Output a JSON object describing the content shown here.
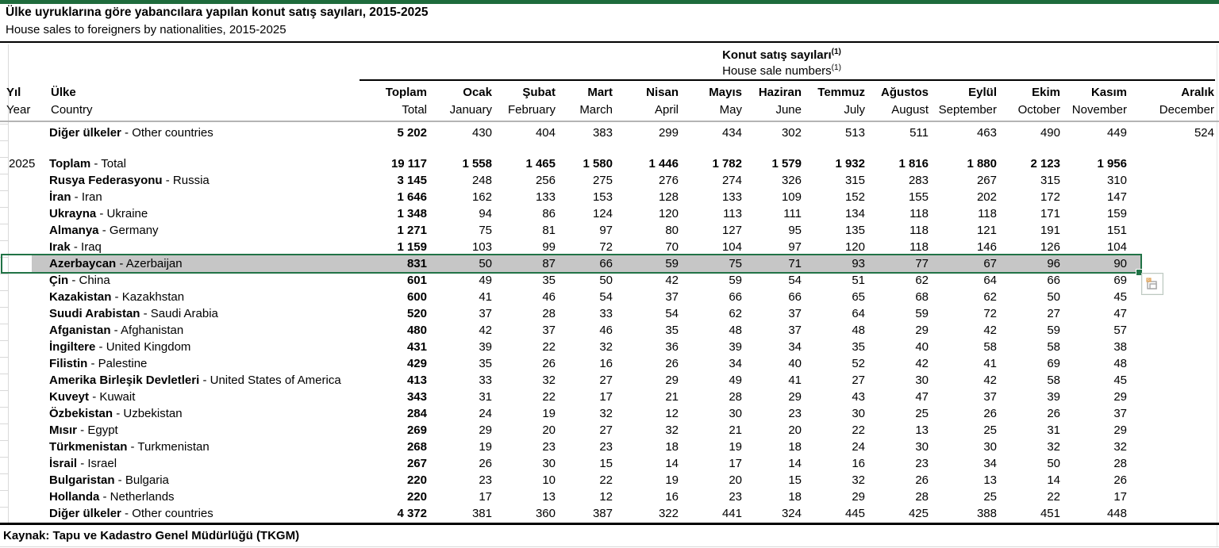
{
  "title": {
    "tr": "Ülke uyruklarına göre yabancılara yapılan konut satış sayıları, 2015-2025",
    "en": "House sales to foreigners by nationalities, 2015-2025"
  },
  "table": {
    "group_header": {
      "tr": "Konut satış sayıları",
      "en": "House sale numbers",
      "footnote": "(1)"
    },
    "columns": {
      "year": {
        "tr": "Yıl",
        "en": "Year"
      },
      "country": {
        "tr": "Ülke",
        "en": "Country"
      },
      "months": [
        {
          "tr": "Toplam",
          "en": "Total"
        },
        {
          "tr": "Ocak",
          "en": "January"
        },
        {
          "tr": "Şubat",
          "en": "February"
        },
        {
          "tr": "Mart",
          "en": "March"
        },
        {
          "tr": "Nisan",
          "en": "April"
        },
        {
          "tr": "Mayıs",
          "en": "May"
        },
        {
          "tr": "Haziran",
          "en": "June"
        },
        {
          "tr": "Temmuz",
          "en": "July"
        },
        {
          "tr": "Ağustos",
          "en": "August"
        },
        {
          "tr": "Eylül",
          "en": "September"
        },
        {
          "tr": "Ekim",
          "en": "October"
        },
        {
          "tr": "Kasım",
          "en": "November"
        },
        {
          "tr": "Aralık",
          "en": "December"
        }
      ]
    },
    "rows": [
      {
        "year": "",
        "tr": "Diğer ülkeler",
        "en": "Other countries",
        "gap_after": true,
        "values": [
          "5 202",
          "430",
          "404",
          "383",
          "299",
          "434",
          "302",
          "513",
          "511",
          "463",
          "490",
          "449",
          "524"
        ]
      },
      {
        "year": "2025",
        "tr": "Toplam",
        "en": "Total",
        "bold_row": true,
        "values": [
          "19 117",
          "1 558",
          "1 465",
          "1 580",
          "1 446",
          "1 782",
          "1 579",
          "1 932",
          "1 816",
          "1 880",
          "2 123",
          "1 956",
          ""
        ]
      },
      {
        "year": "",
        "tr": "Rusya Federasyonu",
        "en": "Russia",
        "values": [
          "3 145",
          "248",
          "256",
          "275",
          "276",
          "274",
          "326",
          "315",
          "283",
          "267",
          "315",
          "310",
          ""
        ]
      },
      {
        "year": "",
        "tr": "İran",
        "en": "Iran",
        "values": [
          "1 646",
          "162",
          "133",
          "153",
          "128",
          "133",
          "109",
          "152",
          "155",
          "202",
          "172",
          "147",
          ""
        ]
      },
      {
        "year": "",
        "tr": "Ukrayna",
        "en": "Ukraine",
        "values": [
          "1 348",
          "94",
          "86",
          "124",
          "120",
          "113",
          "111",
          "134",
          "118",
          "118",
          "171",
          "159",
          ""
        ]
      },
      {
        "year": "",
        "tr": "Almanya",
        "en": "Germany",
        "values": [
          "1 271",
          "75",
          "81",
          "97",
          "80",
          "127",
          "95",
          "135",
          "118",
          "121",
          "191",
          "151",
          ""
        ]
      },
      {
        "year": "",
        "tr": "Irak",
        "en": "Iraq",
        "values": [
          "1 159",
          "103",
          "99",
          "72",
          "70",
          "104",
          "97",
          "120",
          "118",
          "146",
          "126",
          "104",
          ""
        ]
      },
      {
        "year": "",
        "tr": "Azerbaycan",
        "en": "Azerbaijan",
        "selected": true,
        "values": [
          "831",
          "50",
          "87",
          "66",
          "59",
          "75",
          "71",
          "93",
          "77",
          "67",
          "96",
          "90",
          ""
        ]
      },
      {
        "year": "",
        "tr": "Çin",
        "en": "China",
        "values": [
          "601",
          "49",
          "35",
          "50",
          "42",
          "59",
          "54",
          "51",
          "62",
          "64",
          "66",
          "69",
          ""
        ]
      },
      {
        "year": "",
        "tr": "Kazakistan",
        "en": "Kazakhstan",
        "values": [
          "600",
          "41",
          "46",
          "54",
          "37",
          "66",
          "66",
          "65",
          "68",
          "62",
          "50",
          "45",
          ""
        ]
      },
      {
        "year": "",
        "tr": "Suudi Arabistan",
        "en": "Saudi Arabia",
        "values": [
          "520",
          "37",
          "28",
          "33",
          "54",
          "62",
          "37",
          "64",
          "59",
          "72",
          "27",
          "47",
          ""
        ]
      },
      {
        "year": "",
        "tr": "Afganistan",
        "en": "Afghanistan",
        "values": [
          "480",
          "42",
          "37",
          "46",
          "35",
          "48",
          "37",
          "48",
          "29",
          "42",
          "59",
          "57",
          ""
        ]
      },
      {
        "year": "",
        "tr": "İngiltere",
        "en": "United Kingdom",
        "values": [
          "431",
          "39",
          "22",
          "32",
          "36",
          "39",
          "34",
          "35",
          "40",
          "58",
          "58",
          "38",
          ""
        ]
      },
      {
        "year": "",
        "tr": "Filistin",
        "en": "Palestine",
        "values": [
          "429",
          "35",
          "26",
          "16",
          "26",
          "34",
          "40",
          "52",
          "42",
          "41",
          "69",
          "48",
          ""
        ]
      },
      {
        "year": "",
        "tr": "Amerika Birleşik Devletleri",
        "en": "United States of America",
        "values": [
          "413",
          "33",
          "32",
          "27",
          "29",
          "49",
          "41",
          "27",
          "30",
          "42",
          "58",
          "45",
          ""
        ]
      },
      {
        "year": "",
        "tr": "Kuveyt",
        "en": "Kuwait",
        "values": [
          "343",
          "31",
          "22",
          "17",
          "21",
          "28",
          "29",
          "43",
          "47",
          "37",
          "39",
          "29",
          ""
        ]
      },
      {
        "year": "",
        "tr": "Özbekistan",
        "en": "Uzbekistan",
        "values": [
          "284",
          "24",
          "19",
          "32",
          "12",
          "30",
          "23",
          "30",
          "25",
          "26",
          "26",
          "37",
          ""
        ]
      },
      {
        "year": "",
        "tr": "Mısır",
        "en": "Egypt",
        "values": [
          "269",
          "29",
          "20",
          "27",
          "32",
          "21",
          "20",
          "22",
          "13",
          "25",
          "31",
          "29",
          ""
        ]
      },
      {
        "year": "",
        "tr": "Türkmenistan",
        "en": "Turkmenistan",
        "values": [
          "268",
          "19",
          "23",
          "23",
          "18",
          "19",
          "18",
          "24",
          "30",
          "30",
          "32",
          "32",
          ""
        ]
      },
      {
        "year": "",
        "tr": "İsrail",
        "en": "Israel",
        "values": [
          "267",
          "26",
          "30",
          "15",
          "14",
          "17",
          "14",
          "16",
          "23",
          "34",
          "50",
          "28",
          ""
        ]
      },
      {
        "year": "",
        "tr": "Bulgaristan",
        "en": "Bulgaria",
        "values": [
          "220",
          "23",
          "10",
          "22",
          "19",
          "20",
          "15",
          "32",
          "26",
          "13",
          "14",
          "26",
          ""
        ]
      },
      {
        "year": "",
        "tr": "Hollanda",
        "en": "Netherlands",
        "values": [
          "220",
          "17",
          "13",
          "12",
          "16",
          "23",
          "18",
          "29",
          "28",
          "25",
          "22",
          "17",
          ""
        ]
      },
      {
        "year": "",
        "tr": "Diğer ülkeler",
        "en": "Other countries",
        "values": [
          "4 372",
          "381",
          "360",
          "387",
          "322",
          "441",
          "324",
          "445",
          "425",
          "388",
          "451",
          "448",
          ""
        ]
      }
    ]
  },
  "source": "Kaynak: Tapu ve Kadastro Genel Müdürlüğü (TKGM)",
  "selection": {
    "row_country": "Azerbaycan",
    "fill_handle": "fill-handle",
    "paste_button": "paste-options"
  },
  "colors": {
    "top_bar": "#1e6b3c",
    "sel_border": "#217346",
    "sel_fill": "#c6c6c6",
    "gridline": "#d9d9d9",
    "header_rule": "#b4b4b4",
    "black_rule": "#000000",
    "paste_orange": "#e2a75e"
  }
}
